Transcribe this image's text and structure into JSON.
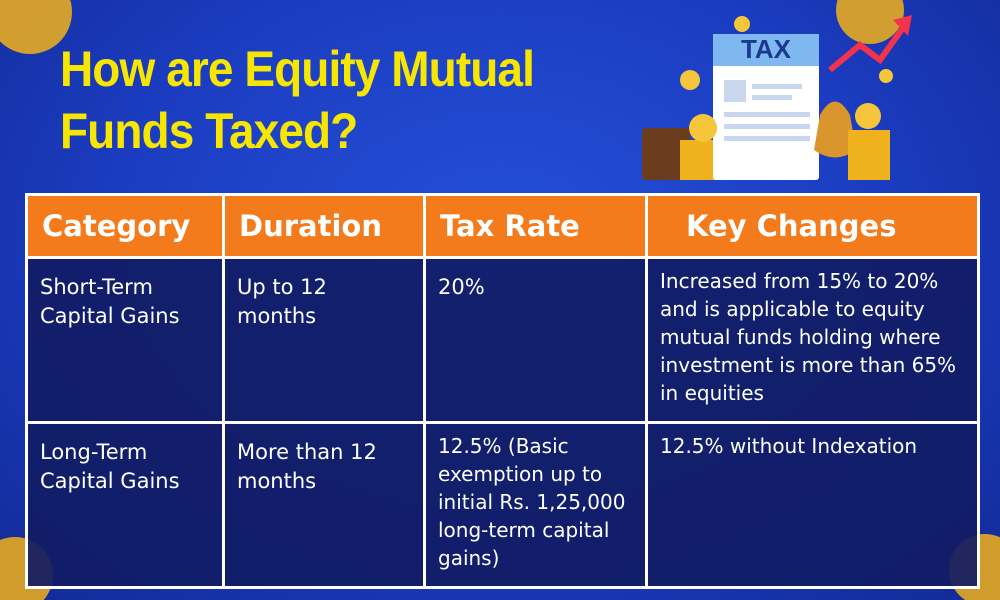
{
  "header": {
    "title": "How are Equity Mutual Funds Taxed?",
    "illustration_label": "TAX"
  },
  "table": {
    "headers": [
      "Category",
      "Duration",
      "Tax Rate",
      "Key Changes"
    ],
    "rows": [
      [
        "Short-Term Capital Gains",
        "Up to 12 months",
        "20%",
        "Increased from 15% to 20% and is  applicable to equity mutual funds holding where investment is more than 65% in equities"
      ],
      [
        "Long-Term Capital Gains",
        "More than 12 months",
        "12.5% (Basic exemption up to initial Rs. 1,25,000 long-term capital gains)",
        "12.5% without Indexation"
      ]
    ]
  }
}
